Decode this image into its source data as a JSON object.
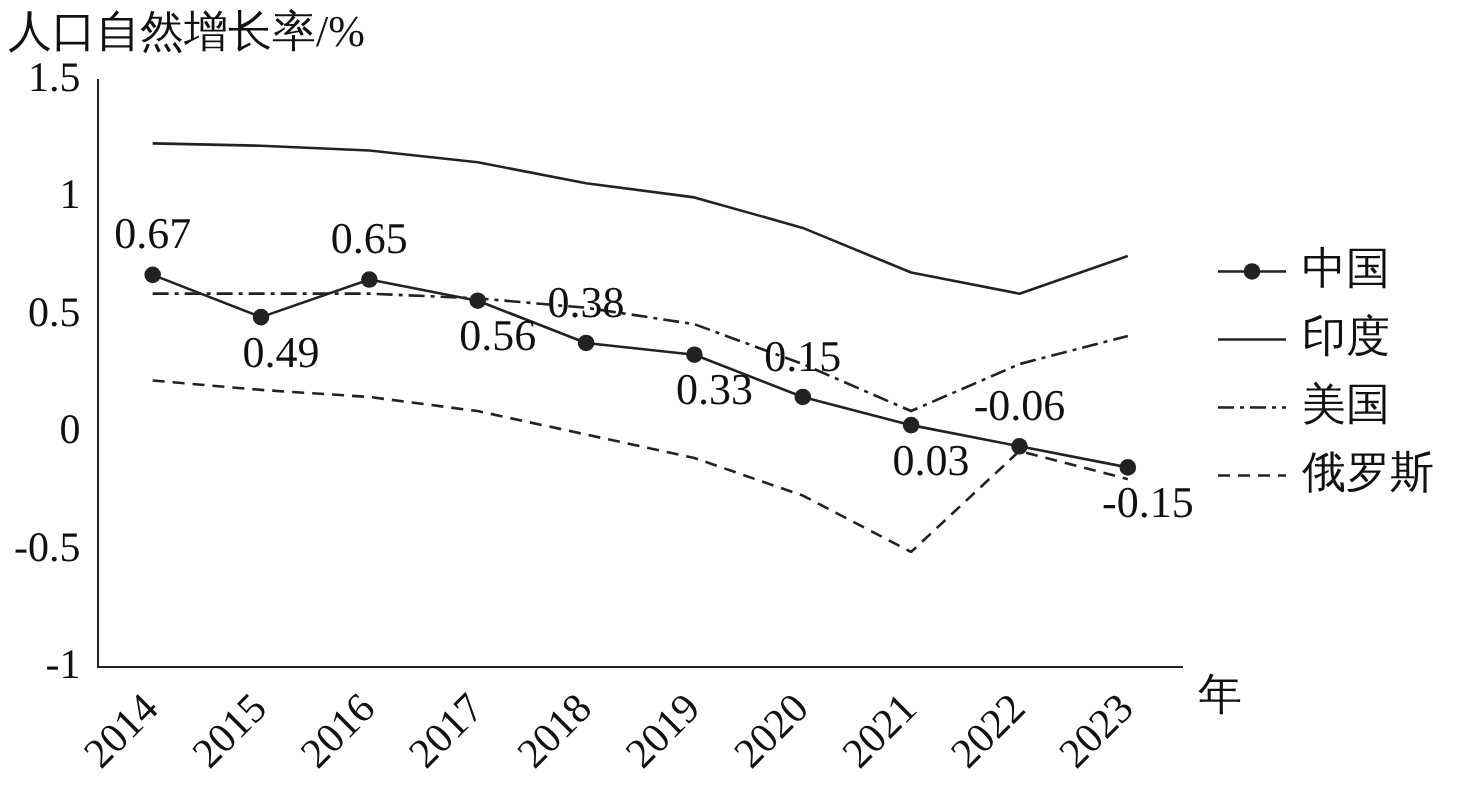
{
  "chart_data": {
    "type": "line",
    "ylabel": "人口自然增长率/%",
    "xlabel": "年",
    "categories": [
      "2014",
      "2015",
      "2016",
      "2017",
      "2018",
      "2019",
      "2020",
      "2021",
      "2022",
      "2023"
    ],
    "series": [
      {
        "name": "中国",
        "color": "#222222",
        "values": [
          0.67,
          0.49,
          0.65,
          0.56,
          0.38,
          0.33,
          0.15,
          0.03,
          -0.06,
          -0.15
        ],
        "marker": "circle",
        "line_style": "solid",
        "data_labels": true
      },
      {
        "name": "印度",
        "color": "#222222",
        "values": [
          1.23,
          1.22,
          1.2,
          1.15,
          1.06,
          1.0,
          0.87,
          0.68,
          0.59,
          0.75
        ],
        "marker": "none",
        "line_style": "solid"
      },
      {
        "name": "美国",
        "color": "#222222",
        "values": [
          0.59,
          0.59,
          0.59,
          0.57,
          0.53,
          0.46,
          0.29,
          0.09,
          0.29,
          0.41
        ],
        "marker": "none",
        "line_style": "dashdot"
      },
      {
        "name": "俄罗斯",
        "color": "#222222",
        "values": [
          0.22,
          0.18,
          0.15,
          0.09,
          -0.01,
          -0.11,
          -0.27,
          -0.51,
          -0.08,
          -0.2
        ],
        "marker": "none",
        "line_style": "dashed"
      }
    ],
    "ylim": [
      -1,
      1.5
    ],
    "yticks": [
      -1,
      -0.5,
      0,
      0.5,
      1,
      1.5
    ],
    "grid": false,
    "legend": "right"
  }
}
